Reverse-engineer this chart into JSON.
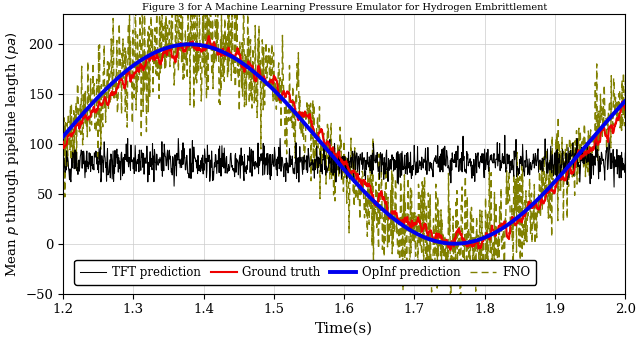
{
  "title": "Figure 3 for A Machine Learning Pressure Emulator for Hydrogen Embrittlement",
  "xlabel": "Time(s)",
  "ylabel": "Mean $p$ through pipeline length $(pa)$",
  "xlim": [
    1.2,
    2.0
  ],
  "ylim": [
    -50,
    230
  ],
  "yticks": [
    -50,
    0,
    50,
    100,
    150,
    200
  ],
  "xticks": [
    1.2,
    1.3,
    1.4,
    1.5,
    1.6,
    1.7,
    1.8,
    1.9,
    2.0
  ],
  "opinf_color": "#0000EE",
  "ground_truth_color": "#EE0000",
  "tft_color": "#000000",
  "fno_color": "#808000",
  "background_color": "#FFFFFF",
  "grid_color": "#CCCCCC",
  "opinf_lw": 2.8,
  "gt_lw": 1.5,
  "tft_lw": 0.75,
  "fno_lw": 1.0,
  "period": 0.755,
  "amplitude": 100,
  "mean_val": 100,
  "peak1_t": 1.38,
  "tft_mean": 82,
  "tft_noise_std": 8
}
